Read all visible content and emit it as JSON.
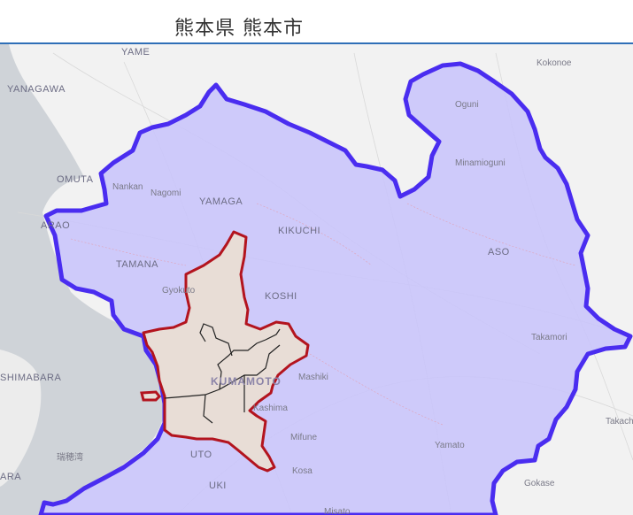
{
  "header": {
    "title": "熊本県 熊本市"
  },
  "colors": {
    "prefecture_fill": "#c8c3fb",
    "prefecture_border": "#4a2df0",
    "city_fill": "#e8ddd6",
    "city_border": "#b3141e",
    "ward_border": "#222222",
    "sea": "#cfd3d8",
    "land": "#f2f2f2"
  },
  "places": {
    "yame": "YAME",
    "kokonoe": "Kokonoe",
    "yanagawa": "YANAGAWA",
    "oguni": "Oguni",
    "minamioguni": "Minamioguni",
    "omuta": "OMUTA",
    "nankan": "Nankan",
    "nagomi": "Nagomi",
    "yamaga": "YAMAGA",
    "kikuchi": "KIKUCHI",
    "arao": "ARAO",
    "aso": "ASO",
    "tamana": "TAMANA",
    "gyokuto": "Gyokuto",
    "koshi": "KOSHI",
    "takamori": "Takamori",
    "shimabara": "SHIMABARA",
    "kumamoto": "KUMAMOTO",
    "mashiki": "Mashiki",
    "kashima": "Kashima",
    "takachiho": "Takachiho",
    "mifune": "Mifune",
    "yamato": "Yamato",
    "uto": "UTO",
    "kosa": "Kosa",
    "uki": "UKI",
    "gokase": "Gokase",
    "misato": "Misato",
    "mizuho": "瑞穂湾",
    "ara": "ARA"
  }
}
